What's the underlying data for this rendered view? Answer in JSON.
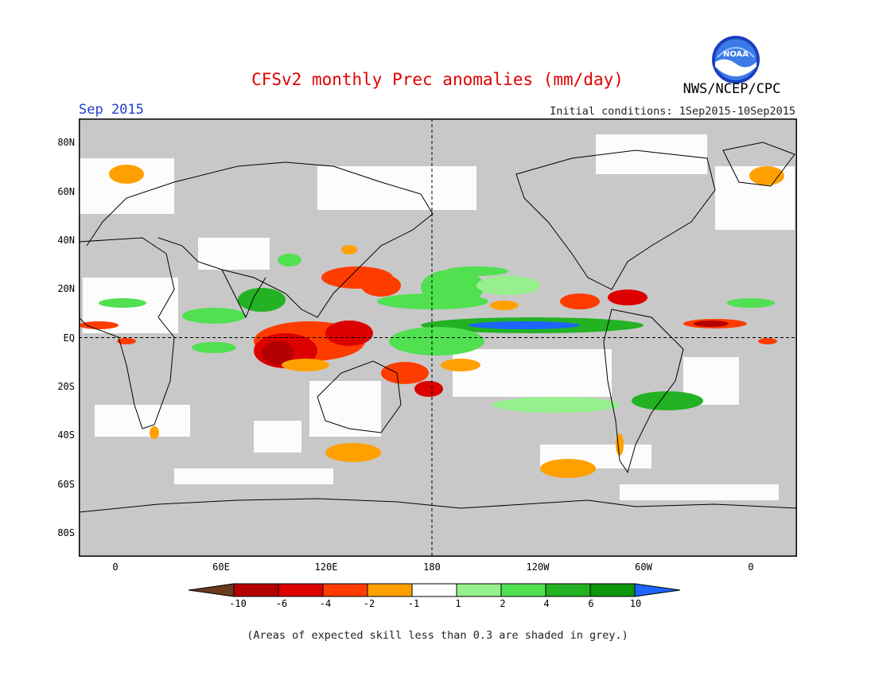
{
  "header": {
    "title": "CFSv2 monthly Prec anomalies (mm/day)",
    "title_color": "#e00000",
    "month": "Sep 2015",
    "month_color": "#1f3fcf",
    "initial_conditions": "Initial conditions: 1Sep2015-10Sep2015",
    "agency": "NWS/NCEP/CPC",
    "logo_text": "NOAA"
  },
  "map": {
    "projection": "cylindrical-equidistant",
    "center_longitude": "180",
    "lat_labels": [
      "80N",
      "60N",
      "40N",
      "20N",
      "EQ",
      "20S",
      "40S",
      "60S",
      "80S"
    ],
    "lon_labels": [
      "0",
      "60E",
      "120E",
      "180",
      "120W",
      "60W",
      "0"
    ],
    "reference_lines": [
      "equator dashed",
      "dateline dashed"
    ],
    "background_skill_color": "#c8c8c8"
  },
  "colorbar": {
    "ticks": [
      "-10",
      "-6",
      "-4",
      "-2",
      "-1",
      "1",
      "2",
      "4",
      "6",
      "10"
    ],
    "colors": [
      "#6b3a1f",
      "#b40000",
      "#dc0000",
      "#ff3c00",
      "#ffa000",
      "#ffffff",
      "#96f08c",
      "#50e050",
      "#23b223",
      "#0c960c",
      "#1e64ff"
    ]
  },
  "footnote": "(Areas of expected skill less than 0.3 are shaded in grey.)"
}
